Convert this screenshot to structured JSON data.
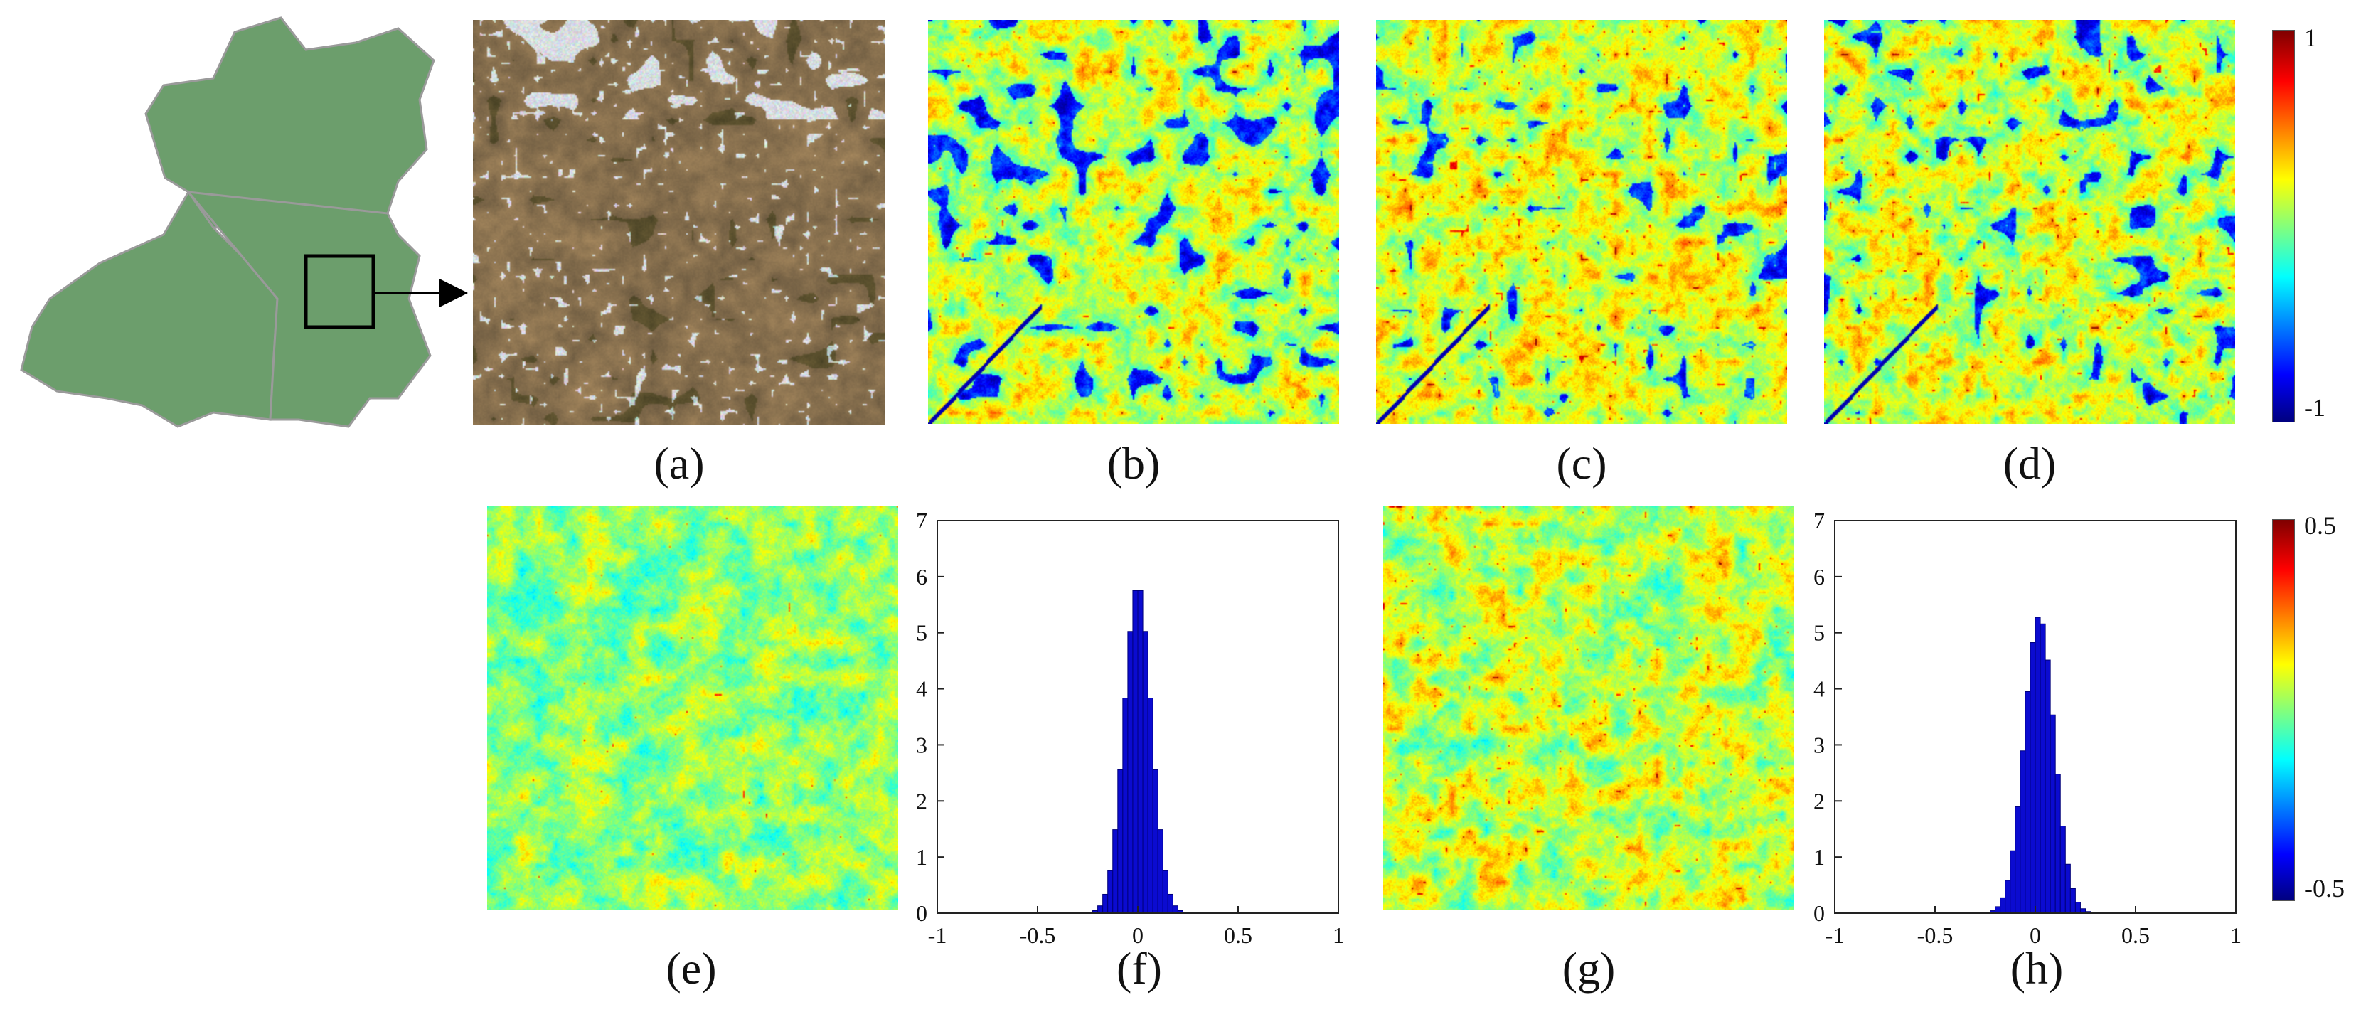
{
  "figure": {
    "panels": [
      {
        "id": "a",
        "label": "(a)"
      },
      {
        "id": "b",
        "label": "(b)"
      },
      {
        "id": "c",
        "label": "(c)"
      },
      {
        "id": "d",
        "label": "(d)"
      },
      {
        "id": "e",
        "label": "(e)"
      },
      {
        "id": "f",
        "label": "(f)"
      },
      {
        "id": "g",
        "label": "(g)"
      },
      {
        "id": "h",
        "label": "(h)"
      }
    ],
    "colorbar_top": {
      "max_label": "1",
      "min_label": "-1"
    },
    "colorbar_bottom": {
      "max_label": "0.5",
      "min_label": "-0.5"
    },
    "colors": {
      "map_fill": "#6c9e6c",
      "map_stroke": "#9a9a9a",
      "bar_fill": "#0b0bd0",
      "bar_edge": "#00007a",
      "jet_low": "#00007f",
      "jet_high": "#7f0000"
    }
  },
  "chart_data": [
    {
      "panel": "f",
      "type": "bar",
      "xlim": [
        -1,
        1
      ],
      "ylim": [
        0,
        7
      ],
      "xticks": [
        -1,
        -0.5,
        0,
        0.5,
        1
      ],
      "xtick_labels": [
        "-1",
        "-0.5",
        "0",
        "0.5",
        "1"
      ],
      "yticks": [
        0,
        1,
        2,
        3,
        4,
        5,
        6,
        7
      ],
      "ytick_labels": [
        "0",
        "1",
        "2",
        "3",
        "4",
        "5",
        "6",
        "7"
      ],
      "distribution": {
        "shape": "approx-normal",
        "mean": 0.0,
        "std": 0.068,
        "peak": 5.85
      }
    },
    {
      "panel": "h",
      "type": "bar",
      "xlim": [
        -1,
        1
      ],
      "ylim": [
        0,
        7
      ],
      "xticks": [
        -1,
        -0.5,
        0,
        0.5,
        1
      ],
      "xtick_labels": [
        "-1",
        "-0.5",
        "0",
        "0.5",
        "1"
      ],
      "yticks": [
        0,
        1,
        2,
        3,
        4,
        5,
        6,
        7
      ],
      "ytick_labels": [
        "0",
        "1",
        "2",
        "3",
        "4",
        "5",
        "6",
        "7"
      ],
      "distribution": {
        "shape": "approx-normal",
        "mean": 0.02,
        "std": 0.075,
        "peak": 5.3
      }
    }
  ]
}
